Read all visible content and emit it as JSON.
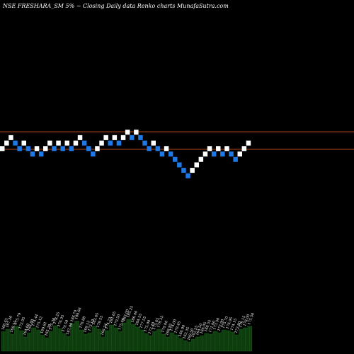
{
  "chart_data": {
    "type": "renko",
    "title": "NSE FRESHARA_SM 5% ~  Closing Daily data  Renko  charts MunafaSutra.com",
    "reference_lines": [
      185.5,
      176.5
    ],
    "colors": {
      "background": "#000000",
      "up_brick": "#ffffff",
      "down_brick": "#1e78e6",
      "reference_line": "#c0501e",
      "volume_fill": "#0f3c0f",
      "volume_line": "#1a5a1a"
    },
    "bricks": [
      {
        "close": 176.9,
        "dir": "up"
      },
      {
        "close": 179.7,
        "dir": "up"
      },
      {
        "close": 182.5,
        "dir": "up"
      },
      {
        "close": 179.7,
        "dir": "down"
      },
      {
        "close": 176.9,
        "dir": "down"
      },
      {
        "close": 179.7,
        "dir": "up"
      },
      {
        "close": 176.9,
        "dir": "down"
      },
      {
        "close": 174.1,
        "dir": "down"
      },
      {
        "close": 176.9,
        "dir": "up"
      },
      {
        "close": 174.1,
        "dir": "down"
      },
      {
        "close": 176.9,
        "dir": "up"
      },
      {
        "close": 179.7,
        "dir": "up"
      },
      {
        "close": 176.9,
        "dir": "down"
      },
      {
        "close": 179.7,
        "dir": "up"
      },
      {
        "close": 176.9,
        "dir": "down"
      },
      {
        "close": 179.7,
        "dir": "up"
      },
      {
        "close": 176.9,
        "dir": "down"
      },
      {
        "close": 179.7,
        "dir": "up"
      },
      {
        "close": 182.5,
        "dir": "up"
      },
      {
        "close": 179.7,
        "dir": "down"
      },
      {
        "close": 176.9,
        "dir": "down"
      },
      {
        "close": 174.1,
        "dir": "down"
      },
      {
        "close": 176.9,
        "dir": "up"
      },
      {
        "close": 179.7,
        "dir": "up"
      },
      {
        "close": 182.5,
        "dir": "up"
      },
      {
        "close": 179.7,
        "dir": "down"
      },
      {
        "close": 182.5,
        "dir": "up"
      },
      {
        "close": 179.7,
        "dir": "down"
      },
      {
        "close": 182.5,
        "dir": "up"
      },
      {
        "close": 185.3,
        "dir": "up"
      },
      {
        "close": 182.5,
        "dir": "down"
      },
      {
        "close": 185.3,
        "dir": "up"
      },
      {
        "close": 182.5,
        "dir": "down"
      },
      {
        "close": 179.7,
        "dir": "down"
      },
      {
        "close": 176.9,
        "dir": "down"
      },
      {
        "close": 179.7,
        "dir": "up"
      },
      {
        "close": 176.9,
        "dir": "down"
      },
      {
        "close": 174.1,
        "dir": "down"
      },
      {
        "close": 176.9,
        "dir": "up"
      },
      {
        "close": 174.1,
        "dir": "down"
      },
      {
        "close": 171.3,
        "dir": "down"
      },
      {
        "close": 168.5,
        "dir": "down"
      },
      {
        "close": 165.7,
        "dir": "down"
      },
      {
        "close": 162.9,
        "dir": "down"
      },
      {
        "close": 165.7,
        "dir": "up"
      },
      {
        "close": 168.5,
        "dir": "up"
      },
      {
        "close": 171.3,
        "dir": "up"
      },
      {
        "close": 174.1,
        "dir": "up"
      },
      {
        "close": 176.9,
        "dir": "up"
      },
      {
        "close": 174.1,
        "dir": "down"
      },
      {
        "close": 176.9,
        "dir": "up"
      },
      {
        "close": 174.1,
        "dir": "down"
      },
      {
        "close": 176.9,
        "dir": "up"
      },
      {
        "close": 174.1,
        "dir": "down"
      },
      {
        "close": 171.3,
        "dir": "down"
      },
      {
        "close": 174.1,
        "dir": "up"
      },
      {
        "close": 176.9,
        "dir": "up"
      },
      {
        "close": 179.7,
        "dir": "up"
      }
    ],
    "volume_bars": [
      {
        "value": 0.55,
        "label": "166.45"
      },
      {
        "value": 0.62,
        "label": "167.30"
      },
      {
        "value": 0.48,
        "label": "168.55"
      },
      {
        "value": 0.7,
        "label": "175.79"
      },
      {
        "value": 0.58,
        "label": "172.95"
      },
      {
        "value": 0.4,
        "label": "164.60"
      },
      {
        "value": 0.52,
        "label": "168.80"
      },
      {
        "value": 0.66,
        "label": "174.44"
      },
      {
        "value": 0.6,
        "label": "175.12"
      },
      {
        "value": 0.45,
        "label": "169.81"
      },
      {
        "value": 0.38,
        "label": "165.20"
      },
      {
        "value": 0.56,
        "label": "175.30"
      },
      {
        "value": 0.72,
        "label": "178.25"
      },
      {
        "value": 0.64,
        "label": "176.35"
      },
      {
        "value": 0.5,
        "label": "170.50"
      },
      {
        "value": 0.42,
        "label": "167.00"
      },
      {
        "value": 0.78,
        "label": "186.70"
      },
      {
        "value": 0.85,
        "label": "189.66"
      },
      {
        "value": 0.6,
        "label": "176.88"
      },
      {
        "value": 0.48,
        "label": "169.13"
      },
      {
        "value": 0.52,
        "label": "173.10"
      },
      {
        "value": 0.7,
        "label": "182.65"
      },
      {
        "value": 0.62,
        "label": "178.55"
      },
      {
        "value": 0.4,
        "label": "166.24"
      },
      {
        "value": 0.58,
        "label": "174.73"
      },
      {
        "value": 0.74,
        "label": "181.65"
      },
      {
        "value": 0.66,
        "label": "179.50"
      },
      {
        "value": 0.55,
        "label": "175.40"
      },
      {
        "value": 0.8,
        "label": "183.00"
      },
      {
        "value": 0.9,
        "label": "185.25"
      },
      {
        "value": 0.76,
        "label": "186.40"
      },
      {
        "value": 0.68,
        "label": "184.25"
      },
      {
        "value": 0.6,
        "label": "177.55"
      },
      {
        "value": 0.5,
        "label": "175.00"
      },
      {
        "value": 0.44,
        "label": "172.40"
      },
      {
        "value": 0.56,
        "label": "175.65"
      },
      {
        "value": 0.62,
        "label": "178.35"
      },
      {
        "value": 0.48,
        "label": "170.00"
      },
      {
        "value": 0.4,
        "label": "168.95"
      },
      {
        "value": 0.52,
        "label": "174.00"
      },
      {
        "value": 0.46,
        "label": "170.45"
      },
      {
        "value": 0.36,
        "label": "166.90"
      },
      {
        "value": 0.3,
        "label": "163.35"
      },
      {
        "value": 0.26,
        "label": "160.50"
      },
      {
        "value": 0.34,
        "label": "162.25"
      },
      {
        "value": 0.4,
        "label": "164.50"
      },
      {
        "value": 0.44,
        "label": "166.05"
      },
      {
        "value": 0.5,
        "label": "168.55"
      },
      {
        "value": 0.48,
        "label": "171.00"
      },
      {
        "value": 0.56,
        "label": "173.50"
      },
      {
        "value": 0.52,
        "label": "172.90"
      },
      {
        "value": 0.6,
        "label": "175.70"
      },
      {
        "value": 0.58,
        "label": "176.95"
      },
      {
        "value": 0.54,
        "label": "174.15"
      },
      {
        "value": 0.46,
        "label": "172.80"
      },
      {
        "value": 0.62,
        "label": "176.15"
      },
      {
        "value": 0.66,
        "label": "178.00"
      },
      {
        "value": 0.7,
        "label": "175.50"
      }
    ]
  }
}
